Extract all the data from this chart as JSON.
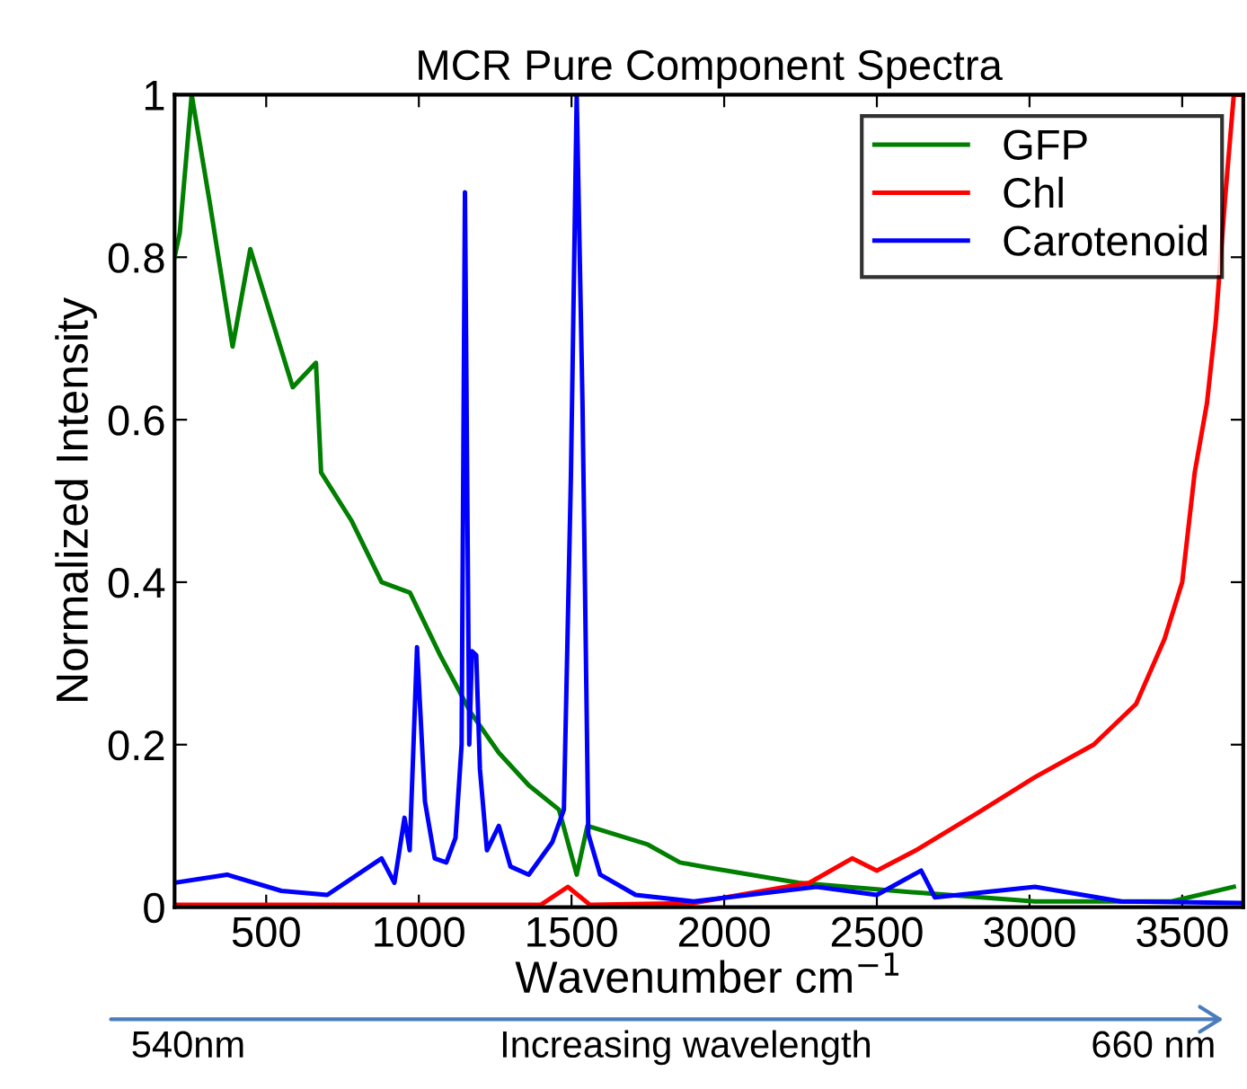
{
  "chart_data": {
    "type": "line",
    "title": "MCR Pure Component Spectra",
    "xlabel": "Wavenumber cm$^{−1}$",
    "ylabel": "Normalized Intensity",
    "xlim": [
      200,
      3700
    ],
    "ylim": [
      0,
      1
    ],
    "xticks": [
      500,
      1000,
      1500,
      2000,
      2500,
      3000,
      3500
    ],
    "yticks": [
      0,
      0.2,
      0.4,
      0.6,
      0.8,
      1
    ],
    "grid": false,
    "legend": "top right",
    "marker": "none",
    "line_style": "solid",
    "annotations": [
      "540nm",
      "Increasing wavelength",
      "660 nm"
    ],
    "series": [
      {
        "name": "GFP",
        "color": "#007f00",
        "x": [
          200,
          217,
          256,
          314,
          390,
          448,
          587,
          663,
          680,
          779,
          878,
          971,
          1070,
          1169,
          1262,
          1360,
          1459,
          1517,
          1552,
          1750,
          1855,
          1942,
          2244,
          2628,
          3018,
          3465,
          3669
        ],
        "values": [
          0.8,
          0.83,
          1.0,
          0.87,
          0.69,
          0.81,
          0.64,
          0.67,
          0.535,
          0.476,
          0.4,
          0.387,
          0.31,
          0.24,
          0.19,
          0.15,
          0.12,
          0.04,
          0.1,
          0.077,
          0.055,
          0.049,
          0.03,
          0.018,
          0.007,
          0.007,
          0.025
        ]
      },
      {
        "name": "Chl",
        "color": "#ff0000",
        "x": [
          200,
          1400,
          1488,
          1560,
          1900,
          2279,
          2419,
          2500,
          2628,
          2826,
          3018,
          3210,
          3349,
          3442,
          3500,
          3541,
          3581,
          3610,
          3640,
          3669,
          3700
        ],
        "values": [
          0.003,
          0.003,
          0.025,
          0.003,
          0.005,
          0.03,
          0.06,
          0.045,
          0.07,
          0.115,
          0.16,
          0.2,
          0.25,
          0.33,
          0.4,
          0.535,
          0.62,
          0.72,
          0.87,
          1.0,
          1.0
        ]
      },
      {
        "name": "Carotenoid",
        "color": "#0000ff",
        "x": [
          200,
          372,
          550,
          700,
          878,
          920,
          953,
          970,
          994,
          1020,
          1052,
          1090,
          1120,
          1140,
          1151,
          1165,
          1174,
          1188,
          1200,
          1223,
          1262,
          1300,
          1360,
          1437,
          1475,
          1498,
          1517,
          1536,
          1555,
          1594,
          1710,
          1900,
          2302,
          2500,
          2645,
          2690,
          3018,
          3300,
          3700
        ],
        "values": [
          0.03,
          0.04,
          0.02,
          0.015,
          0.06,
          0.03,
          0.11,
          0.07,
          0.32,
          0.13,
          0.06,
          0.055,
          0.085,
          0.2,
          0.88,
          0.2,
          0.315,
          0.31,
          0.17,
          0.07,
          0.1,
          0.05,
          0.04,
          0.08,
          0.12,
          0.53,
          1.0,
          0.62,
          0.09,
          0.04,
          0.015,
          0.007,
          0.025,
          0.015,
          0.045,
          0.012,
          0.025,
          0.007,
          0.005
        ]
      }
    ]
  }
}
